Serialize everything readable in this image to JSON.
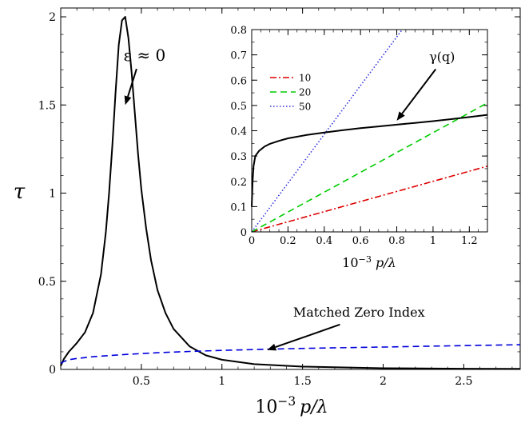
{
  "chart_data": [
    {
      "type": "line",
      "xlabel": "10−3 p/λ",
      "ylabel": "τ",
      "xlim": [
        0,
        2.85
      ],
      "ylim": [
        0,
        2.05
      ],
      "xticks": [
        0.5,
        1,
        1.5,
        2,
        2.5
      ],
      "xtick_labels": [
        "0.5",
        "1",
        "1.5",
        "2",
        "2.5"
      ],
      "yticks": [
        0,
        0.5,
        1,
        1.5,
        2
      ],
      "ytick_labels": [
        "0",
        "0.5",
        "1",
        "1.5",
        "2"
      ],
      "series": [
        {
          "color": "#000000",
          "style": "solid",
          "x": [
            0,
            0.02,
            0.05,
            0.1,
            0.15,
            0.2,
            0.25,
            0.28,
            0.3,
            0.32,
            0.34,
            0.36,
            0.38,
            0.4,
            0.42,
            0.44,
            0.46,
            0.48,
            0.5,
            0.53,
            0.56,
            0.6,
            0.65,
            0.7,
            0.8,
            0.9,
            1.0,
            1.2,
            1.5,
            2.0,
            2.5,
            2.85
          ],
          "y": [
            0.02,
            0.06,
            0.1,
            0.15,
            0.21,
            0.32,
            0.54,
            0.78,
            1.0,
            1.27,
            1.57,
            1.84,
            1.98,
            2.0,
            1.88,
            1.68,
            1.45,
            1.22,
            1.02,
            0.8,
            0.62,
            0.45,
            0.32,
            0.23,
            0.13,
            0.08,
            0.055,
            0.03,
            0.016,
            0.007,
            0.004,
            0.003
          ]
        },
        {
          "color": "#0000dd",
          "style": "dashed",
          "x": [
            0,
            0.02,
            0.05,
            0.1,
            0.2,
            0.4,
            0.6,
            0.8,
            1.0,
            1.3,
            1.6,
            2.0,
            2.5,
            2.85
          ],
          "y": [
            0.035,
            0.045,
            0.055,
            0.062,
            0.072,
            0.085,
            0.095,
            0.102,
            0.108,
            0.115,
            0.121,
            0.127,
            0.135,
            0.14
          ]
        }
      ],
      "annotations": [
        {
          "text": "ε ≈ 0",
          "x": 0.52,
          "y": 1.75,
          "arrow_to": [
            0.4,
            1.5
          ]
        },
        {
          "text": "Matched Zero Index",
          "x": 1.85,
          "y": 0.3,
          "arrow_to": [
            1.28,
            0.11
          ]
        }
      ]
    },
    {
      "type": "line",
      "inset": true,
      "xlabel": "10−3 p/λ",
      "ylabel": "",
      "xlim": [
        0,
        1.3
      ],
      "ylim": [
        0,
        0.8
      ],
      "xticks": [
        0,
        0.2,
        0.4,
        0.6,
        0.8,
        1,
        1.2
      ],
      "xtick_labels": [
        "0",
        "0.2",
        "0.4",
        "0.6",
        "0.8",
        "1",
        "1.2"
      ],
      "yticks": [
        0,
        0.1,
        0.2,
        0.3,
        0.4,
        0.5,
        0.6,
        0.7,
        0.8
      ],
      "ytick_labels": [
        "0",
        "0.1",
        "0.2",
        "0.3",
        "0.4",
        "0.5",
        "0.6",
        "0.7",
        "0.8"
      ],
      "legend_position": "top-left",
      "series": [
        {
          "name": "10",
          "color": "#dd0000",
          "style": "dashdot",
          "x": [
            0,
            1.3
          ],
          "y": [
            0,
            0.26
          ]
        },
        {
          "name": "20",
          "color": "#00cc00",
          "style": "dashed",
          "x": [
            0,
            1.3
          ],
          "y": [
            0,
            0.51
          ]
        },
        {
          "name": "50",
          "color": "#3333dd",
          "style": "dotted",
          "x": [
            0,
            0.83
          ],
          "y": [
            0,
            0.8
          ]
        },
        {
          "color": "#000000",
          "style": "solid",
          "x": [
            0.0,
            0.005,
            0.01,
            0.02,
            0.04,
            0.07,
            0.1,
            0.15,
            0.2,
            0.3,
            0.4,
            0.5,
            0.6,
            0.7,
            0.8,
            0.9,
            1.0,
            1.1,
            1.2,
            1.3
          ],
          "y": [
            0.1,
            0.2,
            0.26,
            0.3,
            0.32,
            0.337,
            0.348,
            0.36,
            0.37,
            0.383,
            0.393,
            0.402,
            0.41,
            0.417,
            0.424,
            0.431,
            0.438,
            0.446,
            0.454,
            0.463
          ]
        }
      ],
      "annotations": [
        {
          "text": "γ(q)",
          "x": 1.05,
          "y": 0.675,
          "arrow_to": [
            0.8,
            0.44
          ]
        }
      ]
    }
  ]
}
